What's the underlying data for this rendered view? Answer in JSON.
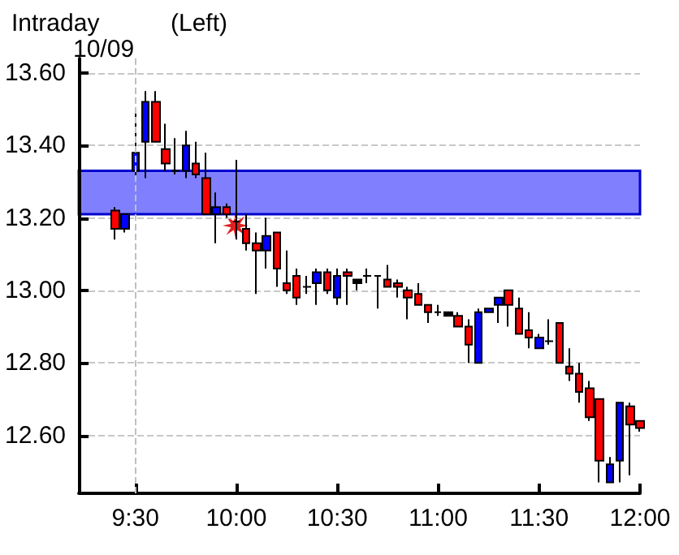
{
  "chart_data": {
    "type": "candlestick",
    "title": "Intraday",
    "subtitle": "(Left)",
    "annotations": [
      "10/09"
    ],
    "x": [
      9.4,
      9.45,
      9.5,
      9.55,
      9.6,
      9.65,
      9.7,
      9.75,
      9.8,
      9.85,
      9.9,
      9.95,
      10.0,
      10.05,
      10.1,
      10.15,
      10.2,
      10.25,
      10.3,
      10.35,
      10.4,
      10.45,
      10.5,
      10.55,
      10.6,
      10.65,
      10.7,
      10.75,
      10.8,
      10.85,
      10.9,
      10.95,
      11.0,
      11.05,
      11.1,
      11.15,
      11.2,
      11.25,
      11.3,
      11.35,
      11.4,
      11.45,
      11.5,
      11.55,
      11.6,
      11.65,
      11.7,
      11.75,
      11.8,
      11.85,
      11.9,
      11.95,
      12.0
    ],
    "ohlc": [
      [
        13.22,
        13.23,
        13.14,
        13.17
      ],
      [
        13.17,
        13.21,
        13.16,
        13.21
      ],
      [
        13.33,
        13.5,
        13.31,
        13.38
      ],
      [
        13.41,
        13.55,
        13.31,
        13.52
      ],
      [
        13.52,
        13.55,
        13.41,
        13.41
      ],
      [
        13.39,
        13.46,
        13.33,
        13.35
      ],
      [
        13.33,
        13.42,
        13.32,
        13.33
      ],
      [
        13.33,
        13.44,
        13.31,
        13.4
      ],
      [
        13.35,
        13.41,
        13.31,
        13.32
      ],
      [
        13.31,
        13.38,
        13.21,
        13.21
      ],
      [
        13.21,
        13.27,
        13.13,
        13.23
      ],
      [
        13.23,
        13.24,
        13.2,
        13.21
      ],
      [
        13.19,
        13.36,
        13.14,
        13.19
      ],
      [
        13.17,
        13.21,
        13.11,
        13.13
      ],
      [
        13.13,
        13.16,
        12.99,
        13.11
      ],
      [
        13.11,
        13.2,
        13.06,
        13.15
      ],
      [
        13.16,
        13.16,
        13.01,
        13.06
      ],
      [
        13.02,
        13.11,
        12.99,
        13.0
      ],
      [
        13.04,
        13.06,
        12.96,
        12.98
      ],
      [
        13.01,
        13.04,
        12.99,
        13.01
      ],
      [
        13.02,
        13.06,
        12.96,
        13.05
      ],
      [
        13.05,
        13.06,
        12.99,
        13.0
      ],
      [
        12.98,
        13.06,
        12.96,
        13.04
      ],
      [
        13.05,
        13.06,
        12.96,
        13.04
      ],
      [
        13.02,
        13.03,
        13.0,
        13.03
      ],
      [
        13.04,
        13.06,
        13.02,
        13.04
      ],
      [
        13.04,
        13.04,
        12.95,
        13.04
      ],
      [
        13.03,
        13.07,
        13.01,
        13.01
      ],
      [
        13.02,
        13.03,
        12.98,
        13.01
      ],
      [
        13.0,
        13.01,
        12.92,
        12.98
      ],
      [
        12.99,
        13.02,
        12.96,
        12.96
      ],
      [
        12.96,
        12.96,
        12.91,
        12.94
      ],
      [
        12.94,
        12.96,
        12.93,
        12.94
      ],
      [
        12.94,
        12.94,
        12.93,
        12.93
      ],
      [
        12.93,
        12.94,
        12.9,
        12.9
      ],
      [
        12.9,
        12.92,
        12.8,
        12.85
      ],
      [
        12.8,
        12.95,
        12.8,
        12.94
      ],
      [
        12.94,
        12.95,
        12.94,
        12.95
      ],
      [
        12.96,
        12.98,
        12.91,
        12.98
      ],
      [
        13.0,
        13.0,
        12.9,
        12.96
      ],
      [
        12.95,
        12.98,
        12.88,
        12.88
      ],
      [
        12.89,
        12.94,
        12.84,
        12.87
      ],
      [
        12.84,
        12.88,
        12.84,
        12.87
      ],
      [
        12.86,
        12.92,
        12.85,
        12.86
      ],
      [
        12.91,
        12.91,
        12.8,
        12.8
      ],
      [
        12.79,
        12.84,
        12.75,
        12.77
      ],
      [
        12.77,
        12.8,
        12.69,
        12.72
      ],
      [
        12.73,
        12.75,
        12.64,
        12.65
      ],
      [
        12.7,
        12.7,
        12.47,
        12.53
      ],
      [
        12.47,
        12.54,
        12.47,
        12.52
      ],
      [
        12.53,
        12.69,
        12.47,
        12.69
      ],
      [
        12.68,
        12.69,
        12.49,
        12.63
      ],
      [
        12.64,
        12.64,
        12.61,
        12.62
      ]
    ],
    "colors": [
      "#ff0000",
      "#0000ff",
      "#0000ff",
      "#0000ff",
      "#ff0000",
      "#ff0000",
      "#000000",
      "#0000ff",
      "#ff0000",
      "#ff0000",
      "#0000ff",
      "#ff0000",
      "#000000",
      "#ff0000",
      "#ff0000",
      "#0000ff",
      "#ff0000",
      "#ff0000",
      "#ff0000",
      "#000000",
      "#0000ff",
      "#ff0000",
      "#0000ff",
      "#ff0000",
      "#000000",
      "#000000",
      "#000000",
      "#ff0000",
      "#ff0000",
      "#ff0000",
      "#ff0000",
      "#ff0000",
      "#000000",
      "#000000",
      "#ff0000",
      "#ff0000",
      "#0000ff",
      "#0000ff",
      "#0000ff",
      "#ff0000",
      "#ff0000",
      "#ff0000",
      "#0000ff",
      "#000000",
      "#ff0000",
      "#ff0000",
      "#ff0000",
      "#ff0000",
      "#ff0000",
      "#0000ff",
      "#0000ff",
      "#ff0000",
      "#ff0000"
    ],
    "xlim": [
      9.22,
      12.0
    ],
    "xticks": [
      {
        "value": 9.5,
        "label": "9:30"
      },
      {
        "value": 10,
        "label": "10:00"
      },
      {
        "value": 10.5,
        "label": "10:30"
      },
      {
        "value": 11,
        "label": "11:00"
      },
      {
        "value": 11.5,
        "label": "11:30"
      },
      {
        "value": 12,
        "label": "12:00"
      }
    ],
    "ylim": [
      12.44,
      13.64
    ],
    "yticks": [
      {
        "value": 12.6,
        "label": "12.60"
      },
      {
        "value": 12.8,
        "label": "12.80"
      },
      {
        "value": 13,
        "label": "13.00"
      },
      {
        "value": 13.2,
        "label": "13.20"
      },
      {
        "value": 13.4,
        "label": "13.40"
      },
      {
        "value": 13.6,
        "label": "13.60"
      }
    ],
    "grid": "y",
    "ref_lines": [
      {
        "axis": "x",
        "value": 9.5,
        "color": "#c0c0c0",
        "line_style": "dashed"
      }
    ],
    "bands": [
      {
        "axis": "y",
        "from": 13.21,
        "to": 13.33,
        "color": "#8080ff"
      }
    ]
  }
}
